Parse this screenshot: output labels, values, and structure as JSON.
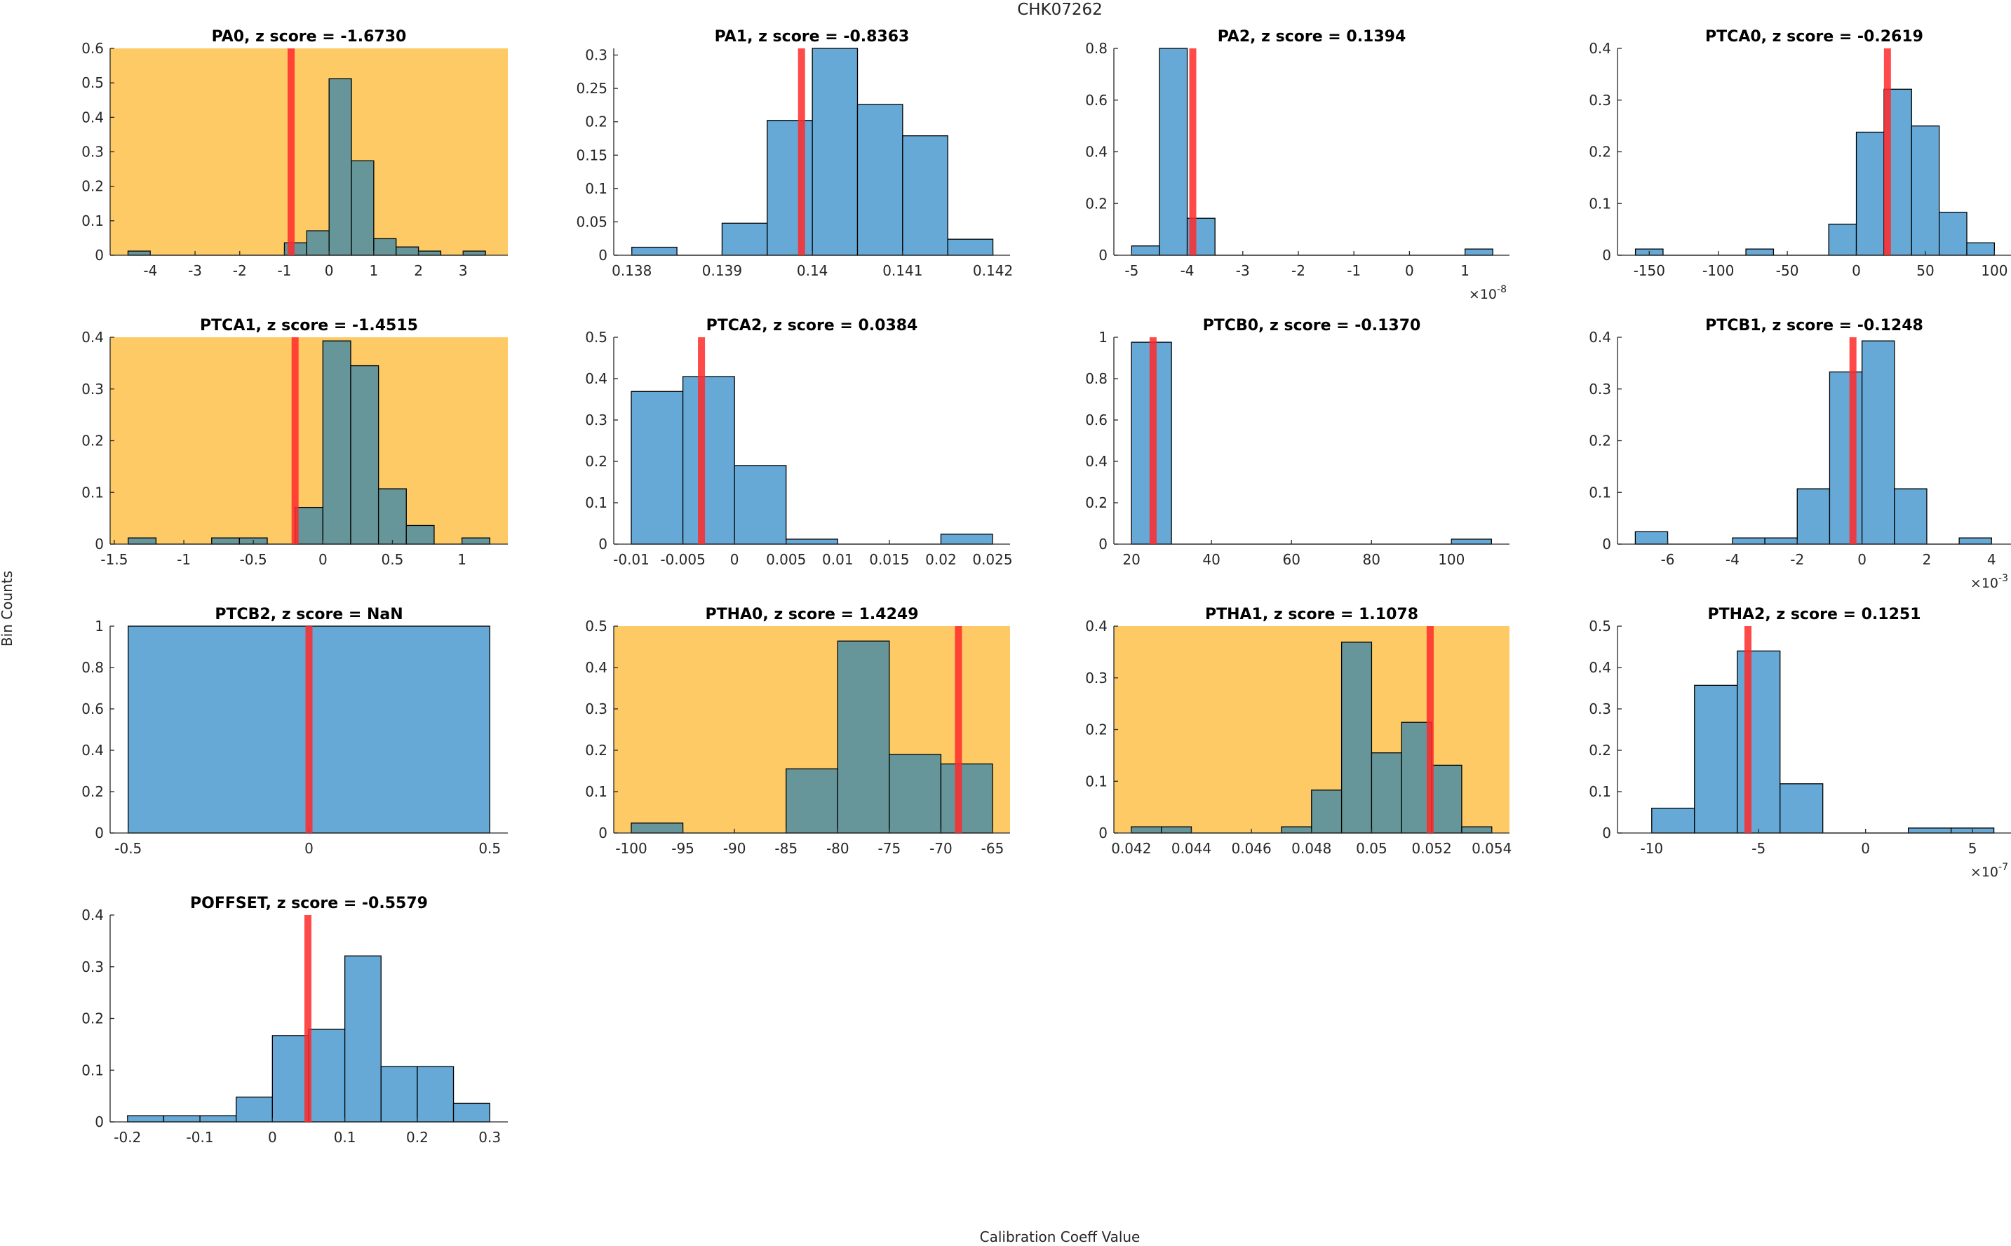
{
  "figure": {
    "title": "CHK07262",
    "ylabel": "Bin Counts",
    "xlabel": "Calibration Coeff Value",
    "colors": {
      "bar_normal": "#66a9d6",
      "bar_flagged": "#669699",
      "flag_background": "#fdca66",
      "marker_line": "#ff2a2a",
      "marker_opacity": 0.85
    }
  },
  "chart_data": [
    {
      "type": "bar",
      "title": "PA0, z score = -1.6730",
      "coeff": "PA0",
      "z_score": "-1.6730",
      "flagged": true,
      "bin_edges": [
        -4.5,
        -4,
        -3.5,
        -3,
        -2.5,
        -2,
        -1.5,
        -1,
        -0.5,
        0,
        0.5,
        1,
        1.5,
        2,
        2.5,
        3,
        3.5
      ],
      "values": [
        0.012,
        0,
        0,
        0,
        0,
        0,
        0,
        0.036,
        0.071,
        0.512,
        0.274,
        0.048,
        0.024,
        0.012,
        0,
        0.012
      ],
      "marker_x": -0.85,
      "xlim": [
        -4.9,
        4.0
      ],
      "ylim": [
        0,
        0.6
      ],
      "xticks": [
        -4,
        -3,
        -2,
        -1,
        0,
        1,
        2,
        3
      ],
      "xtick_labels": [
        "-4",
        "-3",
        "-2",
        "-1",
        "0",
        "1",
        "2",
        "3"
      ],
      "yticks": [
        0,
        0.1,
        0.2,
        0.3,
        0.4,
        0.5,
        0.6
      ],
      "ytick_labels": [
        "0",
        "0.1",
        "0.2",
        "0.3",
        "0.4",
        "0.5",
        "0.6"
      ],
      "x_exponent": ""
    },
    {
      "type": "bar",
      "title": "PA1, z score = -0.8363",
      "coeff": "PA1",
      "z_score": "-0.8363",
      "flagged": false,
      "bin_edges": [
        0.138,
        0.1385,
        0.139,
        0.1395,
        0.14,
        0.1405,
        0.141,
        0.1415,
        0.142
      ],
      "values": [
        0.012,
        0,
        0.048,
        0.202,
        0.31,
        0.226,
        0.179,
        0.024
      ],
      "marker_x": 0.13988,
      "xlim": [
        0.1378,
        0.14219
      ],
      "ylim": [
        0,
        0.31
      ],
      "xticks": [
        0.138,
        0.139,
        0.14,
        0.141,
        0.142
      ],
      "xtick_labels": [
        "0.138",
        "0.139",
        "0.14",
        "0.141",
        "0.142"
      ],
      "yticks": [
        0,
        0.05,
        0.1,
        0.15,
        0.2,
        0.25,
        0.3
      ],
      "ytick_labels": [
        "0",
        "0.05",
        "0.1",
        "0.15",
        "0.2",
        "0.25",
        "0.3"
      ],
      "x_exponent": ""
    },
    {
      "type": "bar",
      "title": "PA2, z score = 0.1394",
      "coeff": "PA2",
      "z_score": "0.1394",
      "flagged": false,
      "bin_edges": [
        -5,
        -4.5,
        -4,
        -3.5,
        -3,
        -2.5,
        -2,
        -1.5,
        -1,
        -0.5,
        0,
        0.5,
        1,
        1.5
      ],
      "values": [
        0.036,
        0.8,
        0.143,
        0,
        0,
        0,
        0,
        0,
        0,
        0,
        0,
        0,
        0.024
      ],
      "marker_x": -3.9,
      "xlim": [
        -5.32,
        1.8
      ],
      "ylim": [
        0,
        0.8
      ],
      "xticks": [
        -5,
        -4,
        -3,
        -2,
        -1,
        0,
        1
      ],
      "xtick_labels": [
        "-5",
        "-4",
        "-3",
        "-2",
        "-1",
        "0",
        "1"
      ],
      "yticks": [
        0,
        0.2,
        0.4,
        0.6,
        0.8
      ],
      "ytick_labels": [
        "0",
        "0.2",
        "0.4",
        "0.6",
        "0.8"
      ],
      "x_exponent": "-8"
    },
    {
      "type": "bar",
      "title": "PTCA0, z score = -0.2619",
      "coeff": "PTCA0",
      "z_score": "-0.2619",
      "flagged": false,
      "bin_edges": [
        -160,
        -140,
        -120,
        -100,
        -80,
        -60,
        -40,
        -20,
        0,
        20,
        40,
        60,
        80,
        100
      ],
      "values": [
        0.012,
        0,
        0,
        0,
        0.012,
        0,
        0,
        0.06,
        0.238,
        0.321,
        0.25,
        0.083,
        0.024
      ],
      "marker_x": 22.5,
      "xlim": [
        -173,
        112
      ],
      "ylim": [
        0,
        0.4
      ],
      "xticks": [
        -150,
        -100,
        -50,
        0,
        50,
        100
      ],
      "xtick_labels": [
        "-150",
        "-100",
        "-50",
        "0",
        "50",
        "100"
      ],
      "yticks": [
        0,
        0.1,
        0.2,
        0.3,
        0.4
      ],
      "ytick_labels": [
        "0",
        "0.1",
        "0.2",
        "0.3",
        "0.4"
      ],
      "x_exponent": ""
    },
    {
      "type": "bar",
      "title": "PTCA1, z score = -1.4515",
      "coeff": "PTCA1",
      "z_score": "-1.4515",
      "flagged": true,
      "bin_edges": [
        -1.4,
        -1.2,
        -1,
        -0.8,
        -0.6,
        -0.4,
        -0.2,
        0,
        0.2,
        0.4,
        0.6,
        0.8,
        1,
        1.2
      ],
      "values": [
        0.012,
        0,
        0,
        0.012,
        0.012,
        0,
        0.071,
        0.393,
        0.345,
        0.107,
        0.036,
        0,
        0.012
      ],
      "marker_x": -0.2,
      "xlim": [
        -1.53,
        1.33
      ],
      "ylim": [
        0,
        0.4
      ],
      "xticks": [
        -1.5,
        -1,
        -0.5,
        0,
        0.5,
        1
      ],
      "xtick_labels": [
        "-1.5",
        "-1",
        "-0.5",
        "0",
        "0.5",
        "1"
      ],
      "yticks": [
        0,
        0.1,
        0.2,
        0.3,
        0.4
      ],
      "ytick_labels": [
        "0",
        "0.1",
        "0.2",
        "0.3",
        "0.4"
      ],
      "x_exponent": ""
    },
    {
      "type": "bar",
      "title": "PTCA2, z score = 0.0384",
      "coeff": "PTCA2",
      "z_score": "0.0384",
      "flagged": false,
      "bin_edges": [
        -0.01,
        -0.005,
        0,
        0.005,
        0.01,
        0.015,
        0.02,
        0.025
      ],
      "values": [
        0.369,
        0.405,
        0.19,
        0.012,
        0,
        0,
        0.024
      ],
      "marker_x": -0.0032,
      "xlim": [
        -0.0117,
        0.0267
      ],
      "ylim": [
        0,
        0.5
      ],
      "xticks": [
        -0.01,
        -0.005,
        0,
        0.005,
        0.01,
        0.015,
        0.02,
        0.025
      ],
      "xtick_labels": [
        "-0.01",
        "-0.005",
        "0",
        "0.005",
        "0.01",
        "0.015",
        "0.02",
        "0.025"
      ],
      "yticks": [
        0,
        0.1,
        0.2,
        0.3,
        0.4,
        0.5
      ],
      "ytick_labels": [
        "0",
        "0.1",
        "0.2",
        "0.3",
        "0.4",
        "0.5"
      ],
      "x_exponent": ""
    },
    {
      "type": "bar",
      "title": "PTCB0, z score = -0.1370",
      "coeff": "PTCB0",
      "z_score": "-0.1370",
      "flagged": false,
      "bin_edges": [
        20,
        30,
        40,
        50,
        60,
        70,
        80,
        90,
        100,
        110
      ],
      "values": [
        0.976,
        0,
        0,
        0,
        0,
        0,
        0,
        0,
        0.024
      ],
      "marker_x": 25.4,
      "xlim": [
        15.6,
        114.5
      ],
      "ylim": [
        0,
        1
      ],
      "xticks": [
        20,
        40,
        60,
        80,
        100
      ],
      "xtick_labels": [
        "20",
        "40",
        "60",
        "80",
        "100"
      ],
      "yticks": [
        0,
        0.2,
        0.4,
        0.6,
        0.8,
        1
      ],
      "ytick_labels": [
        "0",
        "0.2",
        "0.4",
        "0.6",
        "0.8",
        "1"
      ],
      "x_exponent": ""
    },
    {
      "type": "bar",
      "title": "PTCB1, z score = -0.1248",
      "coeff": "PTCB1",
      "z_score": "-0.1248",
      "flagged": false,
      "bin_edges": [
        -7,
        -6,
        -5,
        -4,
        -3,
        -2,
        -1,
        0,
        1,
        2,
        3,
        4
      ],
      "values": [
        0.024,
        0,
        0,
        0.012,
        0.012,
        0.107,
        0.333,
        0.393,
        0.107,
        0,
        0.012
      ],
      "marker_x": -0.28,
      "xlim": [
        -7.55,
        4.6
      ],
      "ylim": [
        0,
        0.4
      ],
      "xticks": [
        -6,
        -4,
        -2,
        0,
        2,
        4
      ],
      "xtick_labels": [
        "-6",
        "-4",
        "-2",
        "0",
        "2",
        "4"
      ],
      "yticks": [
        0,
        0.1,
        0.2,
        0.3,
        0.4
      ],
      "ytick_labels": [
        "0",
        "0.1",
        "0.2",
        "0.3",
        "0.4"
      ],
      "x_exponent": "-3"
    },
    {
      "type": "bar",
      "title": "PTCB2, z score = NaN",
      "coeff": "PTCB2",
      "z_score": "NaN",
      "flagged": false,
      "bin_edges": [
        -0.5,
        0.5
      ],
      "values": [
        1
      ],
      "marker_x": 0,
      "xlim": [
        -0.55,
        0.55
      ],
      "ylim": [
        0,
        1
      ],
      "xticks": [
        -0.5,
        0,
        0.5
      ],
      "xtick_labels": [
        "-0.5",
        "0",
        "0.5"
      ],
      "yticks": [
        0,
        0.2,
        0.4,
        0.6,
        0.8,
        1
      ],
      "ytick_labels": [
        "0",
        "0.2",
        "0.4",
        "0.6",
        "0.8",
        "1"
      ],
      "x_exponent": ""
    },
    {
      "type": "bar",
      "title": "PTHA0, z score = 1.4249",
      "coeff": "PTHA0",
      "z_score": "1.4249",
      "flagged": true,
      "bin_edges": [
        -100,
        -95,
        -90,
        -85,
        -80,
        -75,
        -70,
        -65
      ],
      "values": [
        0.024,
        0,
        0,
        0.155,
        0.464,
        0.19,
        0.167
      ],
      "marker_x": -68.3,
      "xlim": [
        -101.7,
        -63.3
      ],
      "ylim": [
        0,
        0.5
      ],
      "xticks": [
        -100,
        -95,
        -90,
        -85,
        -80,
        -75,
        -70,
        -65
      ],
      "xtick_labels": [
        "-100",
        "-95",
        "-90",
        "-85",
        "-80",
        "-75",
        "-70",
        "-65"
      ],
      "yticks": [
        0,
        0.1,
        0.2,
        0.3,
        0.4,
        0.5
      ],
      "ytick_labels": [
        "0",
        "0.1",
        "0.2",
        "0.3",
        "0.4",
        "0.5"
      ],
      "x_exponent": ""
    },
    {
      "type": "bar",
      "title": "PTHA1, z score = 1.1078",
      "coeff": "PTHA1",
      "z_score": "1.1078",
      "flagged": true,
      "bin_edges": [
        0.042,
        0.043,
        0.044,
        0.045,
        0.046,
        0.047,
        0.048,
        0.049,
        0.05,
        0.051,
        0.052,
        0.053,
        0.054
      ],
      "values": [
        0.012,
        0.012,
        0,
        0,
        0,
        0.012,
        0.083,
        0.369,
        0.155,
        0.214,
        0.131,
        0.012
      ],
      "marker_x": 0.05195,
      "xlim": [
        0.04142,
        0.05459
      ],
      "ylim": [
        0,
        0.4
      ],
      "xticks": [
        0.042,
        0.044,
        0.046,
        0.048,
        0.05,
        0.052,
        0.054
      ],
      "xtick_labels": [
        "0.042",
        "0.044",
        "0.046",
        "0.048",
        "0.05",
        "0.052",
        "0.054"
      ],
      "yticks": [
        0,
        0.1,
        0.2,
        0.3,
        0.4
      ],
      "ytick_labels": [
        "0",
        "0.1",
        "0.2",
        "0.3",
        "0.4"
      ],
      "x_exponent": ""
    },
    {
      "type": "bar",
      "title": "PTHA2, z score = 0.1251",
      "coeff": "PTHA2",
      "z_score": "0.1251",
      "flagged": false,
      "bin_edges": [
        -10,
        -8,
        -6,
        -4,
        -2,
        0,
        2,
        4,
        6
      ],
      "values": [
        0.06,
        0.357,
        0.44,
        0.119,
        0,
        0,
        0.012,
        0.012
      ],
      "marker_x": -5.5,
      "xlim": [
        -11.6,
        6.8
      ],
      "ylim": [
        0,
        0.5
      ],
      "xticks": [
        -10,
        -5,
        0,
        5
      ],
      "xtick_labels": [
        "-10",
        "-5",
        "0",
        "5"
      ],
      "yticks": [
        0,
        0.1,
        0.2,
        0.3,
        0.4,
        0.5
      ],
      "ytick_labels": [
        "0",
        "0.1",
        "0.2",
        "0.3",
        "0.4",
        "0.5"
      ],
      "x_exponent": "-7"
    },
    {
      "type": "bar",
      "title": "POFFSET, z score = -0.5579",
      "coeff": "POFFSET",
      "z_score": "-0.5579",
      "flagged": false,
      "bin_edges": [
        -0.2,
        -0.15,
        -0.1,
        -0.05,
        0,
        0.05,
        0.1,
        0.15,
        0.2,
        0.25,
        0.3
      ],
      "values": [
        0.012,
        0.012,
        0.012,
        0.048,
        0.167,
        0.179,
        0.321,
        0.107,
        0.107,
        0.036
      ],
      "marker_x": 0.049,
      "xlim": [
        -0.224,
        0.325
      ],
      "ylim": [
        0,
        0.4
      ],
      "xticks": [
        -0.2,
        -0.1,
        0,
        0.1,
        0.2,
        0.3
      ],
      "xtick_labels": [
        "-0.2",
        "-0.1",
        "0",
        "0.1",
        "0.2",
        "0.3"
      ],
      "yticks": [
        0,
        0.1,
        0.2,
        0.3,
        0.4
      ],
      "ytick_labels": [
        "0",
        "0.1",
        "0.2",
        "0.3",
        "0.4"
      ],
      "x_exponent": ""
    }
  ]
}
